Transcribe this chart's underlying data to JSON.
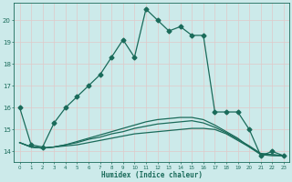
{
  "xlabel": "Humidex (Indice chaleur)",
  "bg_color": "#cceaea",
  "grid_color": "#e0c8c8",
  "line_color": "#1a6b5a",
  "xlim": [
    -0.5,
    23.5
  ],
  "ylim": [
    13.5,
    20.8
  ],
  "yticks": [
    14,
    15,
    16,
    17,
    18,
    19,
    20
  ],
  "xticks": [
    0,
    1,
    2,
    3,
    4,
    5,
    6,
    7,
    8,
    9,
    10,
    11,
    12,
    13,
    14,
    15,
    16,
    17,
    18,
    19,
    20,
    21,
    22,
    23
  ],
  "line1_x": [
    0,
    1,
    2,
    3,
    4,
    5,
    6,
    7,
    8,
    9,
    10,
    11,
    12,
    13,
    14,
    15,
    16,
    17,
    18,
    19,
    20,
    21,
    22,
    23
  ],
  "line1_y": [
    16.0,
    14.3,
    14.2,
    15.3,
    16.0,
    16.5,
    17.0,
    17.5,
    18.3,
    19.1,
    18.3,
    20.5,
    20.0,
    19.5,
    19.7,
    19.3,
    19.3,
    15.8,
    15.8,
    15.8,
    15.0,
    13.8,
    14.0,
    13.8
  ],
  "line2_x": [
    0,
    1,
    2,
    3,
    4,
    5,
    6,
    7,
    8,
    9,
    10,
    11,
    12,
    13,
    14,
    15,
    16,
    17,
    18,
    19,
    20,
    21,
    22,
    23
  ],
  "line2_y": [
    14.4,
    14.2,
    14.15,
    14.2,
    14.25,
    14.3,
    14.4,
    14.5,
    14.6,
    14.7,
    14.8,
    14.85,
    14.9,
    14.95,
    15.0,
    15.05,
    15.05,
    15.0,
    14.8,
    14.5,
    14.2,
    13.85,
    13.8,
    13.8
  ],
  "line3_x": [
    0,
    1,
    2,
    3,
    4,
    5,
    6,
    7,
    8,
    9,
    10,
    11,
    12,
    13,
    14,
    15,
    16,
    17,
    18,
    19,
    20,
    21,
    22,
    23
  ],
  "line3_y": [
    14.4,
    14.2,
    14.15,
    14.2,
    14.3,
    14.4,
    14.55,
    14.65,
    14.8,
    14.9,
    15.05,
    15.15,
    15.25,
    15.3,
    15.35,
    15.4,
    15.3,
    15.1,
    14.85,
    14.55,
    14.25,
    13.9,
    13.85,
    13.8
  ],
  "line4_x": [
    0,
    1,
    2,
    3,
    4,
    5,
    6,
    7,
    8,
    9,
    10,
    11,
    12,
    13,
    14,
    15,
    16,
    17,
    18,
    19,
    20,
    21,
    22,
    23
  ],
  "line4_y": [
    14.4,
    14.2,
    14.15,
    14.2,
    14.3,
    14.45,
    14.6,
    14.75,
    14.9,
    15.05,
    15.2,
    15.35,
    15.45,
    15.5,
    15.55,
    15.55,
    15.45,
    15.2,
    14.9,
    14.6,
    14.2,
    13.9,
    13.85,
    13.8
  ]
}
